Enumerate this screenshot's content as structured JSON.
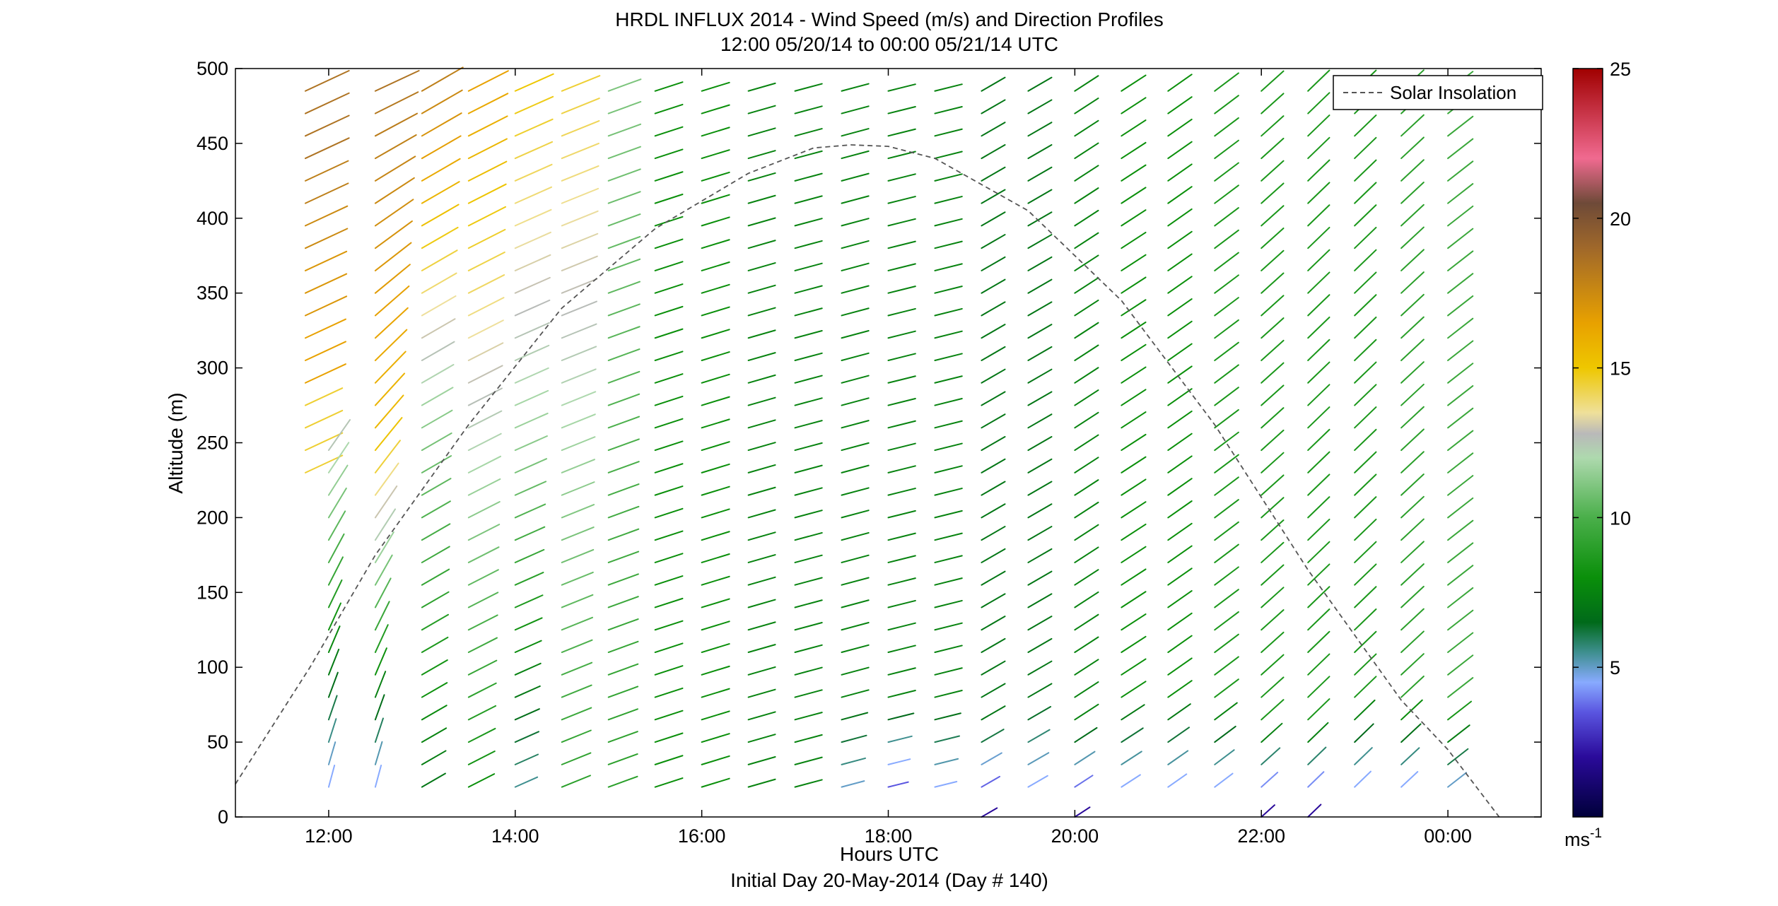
{
  "title_line1": "HRDL INFLUX 2014 - Wind Speed (m/s) and Direction Profiles",
  "title_line2": "12:00 05/20/14 to 00:00 05/21/14  UTC",
  "chart_data": {
    "type": "wind_barb_profile",
    "title": "HRDL INFLUX 2014 - Wind Speed (m/s) and Direction Profiles",
    "subtitle": "12:00 05/20/14 to 00:00 05/21/14  UTC",
    "xlabel": "Hours UTC",
    "xlabel2": "Initial Day 20-May-2014 (Day # 140)",
    "ylabel": "Altitude (m)",
    "x_range_hours": [
      11.0,
      25.0
    ],
    "ylim": [
      0,
      500
    ],
    "x_ticks": [
      {
        "value": 12,
        "label": "12:00"
      },
      {
        "value": 14,
        "label": "14:00"
      },
      {
        "value": 16,
        "label": "16:00"
      },
      {
        "value": 18,
        "label": "18:00"
      },
      {
        "value": 20,
        "label": "20:00"
      },
      {
        "value": 22,
        "label": "22:00"
      },
      {
        "value": 24,
        "label": "00:00"
      }
    ],
    "y_ticks": [
      0,
      50,
      100,
      150,
      200,
      250,
      300,
      350,
      400,
      450,
      500
    ],
    "legend": {
      "label": "Solar Insolation",
      "placement": "top-right",
      "style": "dashed",
      "color": "#555555"
    },
    "colorbar": {
      "unit_label": "ms",
      "unit_exponent": "-1",
      "min": 0,
      "max": 25,
      "ticks": [
        5,
        10,
        15,
        20,
        25
      ],
      "stops": [
        {
          "v": 0.0,
          "c": "#00003a"
        },
        {
          "v": 2.0,
          "c": "#2a0a9a"
        },
        {
          "v": 3.5,
          "c": "#5a55e0"
        },
        {
          "v": 4.5,
          "c": "#88aaff"
        },
        {
          "v": 5.5,
          "c": "#3e8f8f"
        },
        {
          "v": 6.5,
          "c": "#006a1a"
        },
        {
          "v": 8.0,
          "c": "#0a8f0a"
        },
        {
          "v": 10.0,
          "c": "#4aaf4a"
        },
        {
          "v": 12.0,
          "c": "#aed9ae"
        },
        {
          "v": 12.8,
          "c": "#b9b9b9"
        },
        {
          "v": 13.5,
          "c": "#efe09a"
        },
        {
          "v": 15.0,
          "c": "#eec700"
        },
        {
          "v": 16.5,
          "c": "#e8a100"
        },
        {
          "v": 19.0,
          "c": "#a0682a"
        },
        {
          "v": 20.5,
          "c": "#6e4a38"
        },
        {
          "v": 22.0,
          "c": "#f06a90"
        },
        {
          "v": 25.0,
          "c": "#a00000"
        }
      ]
    },
    "solar_insolation_curve": {
      "type": "line",
      "x_hours": [
        11.0,
        11.8,
        12.5,
        13.5,
        14.5,
        15.5,
        16.5,
        17.2,
        17.6,
        18.0,
        18.5,
        19.5,
        20.5,
        21.5,
        22.5,
        23.5,
        24.0,
        24.55
      ],
      "y_m": [
        22,
        100,
        175,
        262,
        340,
        393,
        430,
        447,
        449,
        448,
        440,
        405,
        345,
        262,
        165,
        78,
        45,
        0
      ],
      "note_y_units": "plotted on the altitude axis scale"
    },
    "wind_profile_times_hours": [
      11.75,
      12.0,
      12.5,
      13.0,
      13.5,
      14.0,
      14.5,
      15.0,
      15.5,
      16.0,
      16.5,
      17.0,
      17.5,
      18.0,
      18.5,
      19.0,
      19.5,
      20.0,
      20.5,
      21.0,
      21.5,
      22.0,
      22.5,
      23.0,
      23.5,
      24.0
    ],
    "wind_levels_m": [
      0,
      20,
      35,
      50,
      65,
      80,
      95,
      110,
      125,
      140,
      155,
      170,
      185,
      200,
      215,
      230,
      245,
      260,
      275,
      290,
      305,
      320,
      335,
      350,
      365,
      380,
      395,
      410,
      425,
      440,
      455,
      470,
      485
    ],
    "wind_profiles": [
      {
        "t": 11.75,
        "bottom_m": 230,
        "speed": [
          14.5,
          16.5,
          17.0,
          17.5,
          18.0,
          18.5,
          18.5,
          18.5
        ],
        "speed_levels_m": [
          245,
          290,
          335,
          380,
          410,
          440,
          470,
          485
        ],
        "dir_deg": 245
      },
      {
        "t": 12.0,
        "bottom_m": 20,
        "top_m": 245,
        "speed_bottom": 4.5,
        "speed_top": 12.5,
        "dir_bottom_deg": 195,
        "dir_top_deg": 215
      },
      {
        "t": 12.5,
        "bottom_m": 20,
        "speed_bottom": 4.5,
        "speed_mid": 15.5,
        "speed_top": 18.5,
        "dir_bottom_deg": 195,
        "dir_top_deg": 245
      },
      {
        "t": 13.0,
        "bottom_m": 20,
        "speed_bottom": 7.0,
        "speed_mid": 11.0,
        "speed_top": 18.0,
        "dir_deg": 240
      },
      {
        "t": 13.5,
        "bottom_m": 20,
        "speed_bottom": 8.0,
        "speed_top": 16.5,
        "dir_deg": 243
      },
      {
        "t": 14.0,
        "bottom_m": 20,
        "speed_bottom": 5.5,
        "speed_mid": 11.5,
        "speed_top": 15.0,
        "dir_deg": 246
      },
      {
        "t": 14.5,
        "bottom_m": 20,
        "speed_bottom": 9.0,
        "speed_top": 14.5,
        "dir_deg": 248
      },
      {
        "t": 15.0,
        "bottom_m": 20,
        "speed_bottom": 9.0,
        "speed_top": 11.0,
        "dir_deg": 250
      },
      {
        "t": 15.5,
        "bottom_m": 20,
        "speed": 8.0,
        "dir_deg": 252
      },
      {
        "t": 16.0,
        "bottom_m": 20,
        "speed": 8.0,
        "dir_deg": 253
      },
      {
        "t": 16.5,
        "bottom_m": 20,
        "speed": 7.5,
        "dir_deg": 254
      },
      {
        "t": 17.0,
        "bottom_m": 20,
        "speed": 7.5,
        "dir_deg": 255
      },
      {
        "t": 17.5,
        "bottom_m": 20,
        "speed_bottom": 5.0,
        "speed": 7.5,
        "dir_deg": 255
      },
      {
        "t": 18.0,
        "bottom_m": 20,
        "speed_bottom": 3.5,
        "speed": 7.5,
        "dir_deg": 256
      },
      {
        "t": 18.5,
        "bottom_m": 20,
        "speed_bottom": 4.5,
        "speed": 7.5,
        "dir_deg": 256
      },
      {
        "t": 19.0,
        "bottom_m": 0,
        "speed_bottom": 2.0,
        "speed": 7.0,
        "dir_deg": 240
      },
      {
        "t": 19.5,
        "bottom_m": 20,
        "speed_bottom": 4.5,
        "speed": 7.0,
        "dir_deg": 240
      },
      {
        "t": 20.0,
        "bottom_m": 0,
        "speed_bottom": 2.0,
        "speed": 7.5,
        "dir_deg": 237
      },
      {
        "t": 20.5,
        "bottom_m": 20,
        "speed_bottom": 4.5,
        "speed": 8.0,
        "dir_deg": 237
      },
      {
        "t": 21.0,
        "bottom_m": 20,
        "speed_bottom": 4.5,
        "speed": 8.0,
        "dir_deg": 235
      },
      {
        "t": 21.5,
        "bottom_m": 20,
        "speed_bottom": 4.5,
        "speed": 8.5,
        "dir_deg": 233
      },
      {
        "t": 22.0,
        "bottom_m": 0,
        "speed_bottom": 2.0,
        "speed": 8.5,
        "dir_deg": 228
      },
      {
        "t": 22.5,
        "bottom_m": 0,
        "speed_bottom": 2.0,
        "speed": 8.5,
        "dir_deg": 226
      },
      {
        "t": 23.0,
        "bottom_m": 20,
        "speed_bottom": 4.5,
        "speed": 8.5,
        "dir_deg": 226
      },
      {
        "t": 23.5,
        "bottom_m": 20,
        "speed_bottom": 4.5,
        "speed": 9.0,
        "dir_deg": 227
      },
      {
        "t": 24.0,
        "bottom_m": 20,
        "speed_bottom": 5.0,
        "speed": 9.5,
        "dir_deg": 232
      }
    ]
  }
}
